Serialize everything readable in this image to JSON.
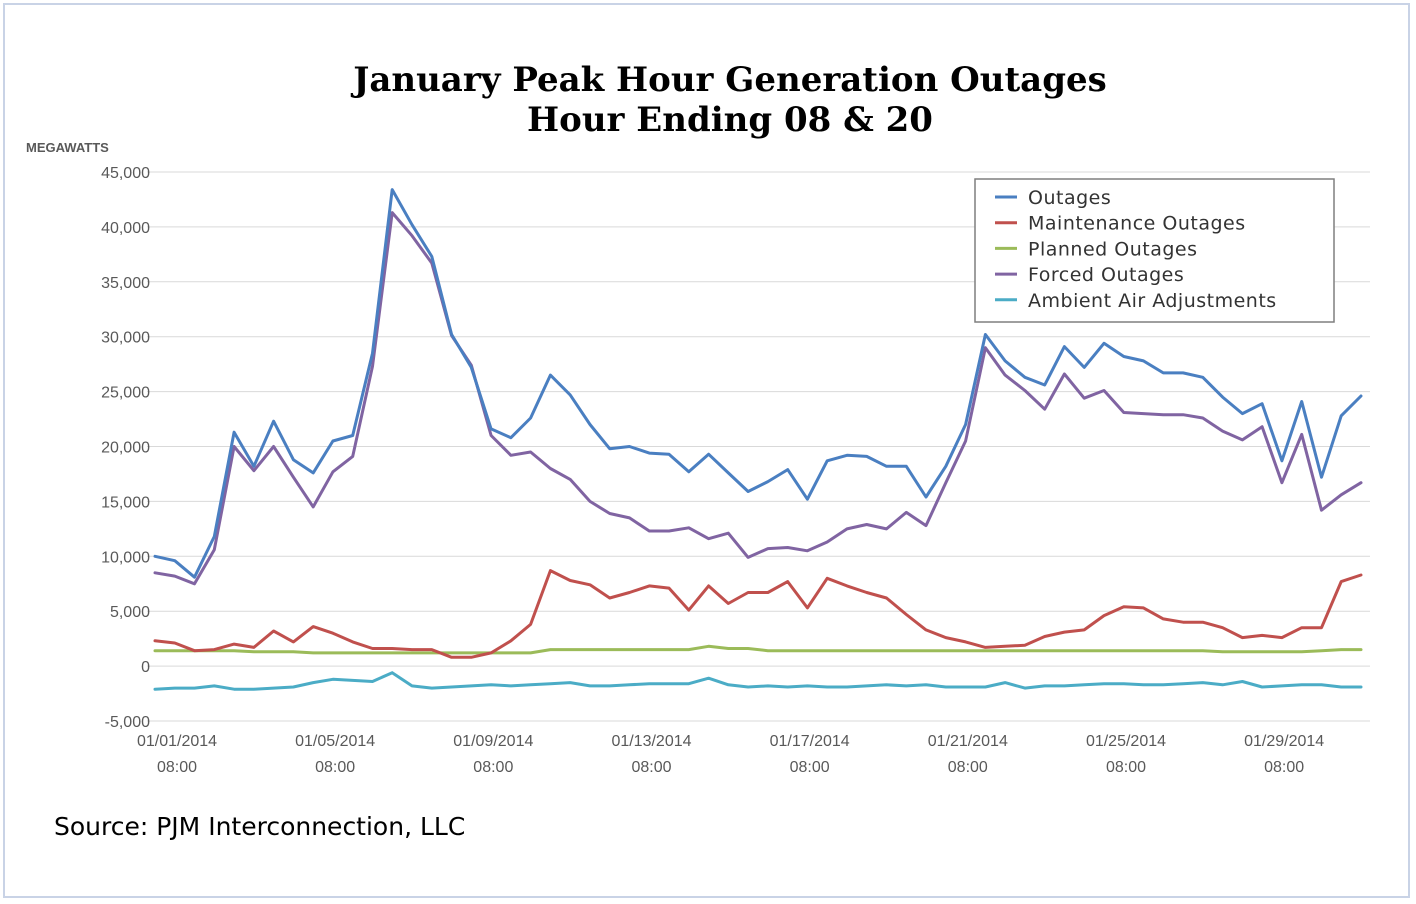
{
  "source": "Source: PJM Interconnection, LLC",
  "chart_data": {
    "type": "line",
    "title": [
      "January Peak Hour Generation Outages",
      "Hour Ending 08 & 20"
    ],
    "ylabel": "MEGAWATTS",
    "xlabel": "",
    "ylim": [
      -5000,
      45000
    ],
    "yticks": [
      -5000,
      0,
      5000,
      10000,
      15000,
      20000,
      25000,
      30000,
      35000,
      40000,
      45000
    ],
    "ytick_labels": [
      "-5,000",
      "0",
      "5,000",
      "10,000",
      "15,000",
      "20,000",
      "25,000",
      "30,000",
      "35,000",
      "40,000",
      "45,000"
    ],
    "x_count": 62,
    "xticks": [
      {
        "index": 0,
        "date": "01/01/2014",
        "time": "08:00"
      },
      {
        "index": 8,
        "date": "01/05/2014",
        "time": "08:00"
      },
      {
        "index": 16,
        "date": "01/09/2014",
        "time": "08:00"
      },
      {
        "index": 24,
        "date": "01/13/2014",
        "time": "08:00"
      },
      {
        "index": 32,
        "date": "01/17/2014",
        "time": "08:00"
      },
      {
        "index": 40,
        "date": "01/21/2014",
        "time": "08:00"
      },
      {
        "index": 48,
        "date": "01/25/2014",
        "time": "08:00"
      },
      {
        "index": 56,
        "date": "01/29/2014",
        "time": "08:00"
      }
    ],
    "legend_position": "top-right",
    "grid": "horizontal",
    "series": [
      {
        "name": "Outages",
        "color": "#4a7fc1",
        "values": [
          10000,
          9600,
          8100,
          11800,
          21300,
          18200,
          22300,
          18800,
          17600,
          20500,
          21000,
          28500,
          43400,
          40200,
          37300,
          30200,
          27200,
          21600,
          20800,
          22600,
          26500,
          24700,
          22000,
          19800,
          20000,
          19400,
          19300,
          17700,
          19300,
          17600,
          15900,
          16800,
          17900,
          15200,
          18700,
          19200,
          19100,
          18200,
          18200,
          15400,
          18200,
          22000,
          30200,
          27800,
          26300,
          25600,
          29100,
          27200,
          29400,
          28200,
          27800,
          26700,
          26700,
          26300,
          24500,
          23000,
          23900,
          18700,
          24100,
          17200,
          22800,
          24600
        ]
      },
      {
        "name": "Maintenance Outages",
        "color": "#c0504d",
        "values": [
          2300,
          2100,
          1400,
          1500,
          2000,
          1700,
          3200,
          2200,
          3600,
          3000,
          2200,
          1600,
          1600,
          1500,
          1500,
          800,
          800,
          1200,
          2300,
          3800,
          8700,
          7800,
          7400,
          6200,
          6700,
          7300,
          7100,
          5100,
          7300,
          5700,
          6700,
          6700,
          7700,
          5300,
          8000,
          7300,
          6700,
          6200,
          4700,
          3300,
          2600,
          2200,
          1700,
          1800,
          1900,
          2700,
          3100,
          3300,
          4600,
          5400,
          5300,
          4300,
          4000,
          4000,
          3500,
          2600,
          2800,
          2600,
          3500,
          3500,
          7700,
          8300
        ]
      },
      {
        "name": "Planned Outages",
        "color": "#9bbb59",
        "values": [
          1400,
          1400,
          1400,
          1400,
          1400,
          1300,
          1300,
          1300,
          1200,
          1200,
          1200,
          1200,
          1200,
          1200,
          1200,
          1200,
          1200,
          1200,
          1200,
          1200,
          1500,
          1500,
          1500,
          1500,
          1500,
          1500,
          1500,
          1500,
          1800,
          1600,
          1600,
          1400,
          1400,
          1400,
          1400,
          1400,
          1400,
          1400,
          1400,
          1400,
          1400,
          1400,
          1400,
          1400,
          1400,
          1400,
          1400,
          1400,
          1400,
          1400,
          1400,
          1400,
          1400,
          1400,
          1300,
          1300,
          1300,
          1300,
          1300,
          1400,
          1500,
          1500
        ]
      },
      {
        "name": "Forced Outages",
        "color": "#8064a2",
        "values": [
          8500,
          8200,
          7500,
          10600,
          20000,
          17800,
          20000,
          17200,
          14500,
          17700,
          19100,
          27300,
          41300,
          39200,
          36700,
          30100,
          27400,
          21000,
          19200,
          19500,
          18000,
          17000,
          15000,
          13900,
          13500,
          12300,
          12300,
          12600,
          11600,
          12100,
          9900,
          10700,
          10800,
          10500,
          11300,
          12500,
          12900,
          12500,
          14000,
          12800,
          16700,
          20500,
          29000,
          26500,
          25100,
          23400,
          26600,
          24400,
          25100,
          23100,
          23000,
          22900,
          22900,
          22600,
          21400,
          20600,
          21800,
          16700,
          21100,
          14200,
          15600,
          16700
        ]
      },
      {
        "name": "Ambient Air Adjustments",
        "color": "#4bacc6",
        "values": [
          -2100,
          -2000,
          -2000,
          -1800,
          -2100,
          -2100,
          -2000,
          -1900,
          -1500,
          -1200,
          -1300,
          -1400,
          -600,
          -1800,
          -2000,
          -1900,
          -1800,
          -1700,
          -1800,
          -1700,
          -1600,
          -1500,
          -1800,
          -1800,
          -1700,
          -1600,
          -1600,
          -1600,
          -1100,
          -1700,
          -1900,
          -1800,
          -1900,
          -1800,
          -1900,
          -1900,
          -1800,
          -1700,
          -1800,
          -1700,
          -1900,
          -1900,
          -1900,
          -1500,
          -2000,
          -1800,
          -1800,
          -1700,
          -1600,
          -1600,
          -1700,
          -1700,
          -1600,
          -1500,
          -1700,
          -1400,
          -1900,
          -1800,
          -1700,
          -1700,
          -1900,
          -1900
        ]
      }
    ]
  }
}
